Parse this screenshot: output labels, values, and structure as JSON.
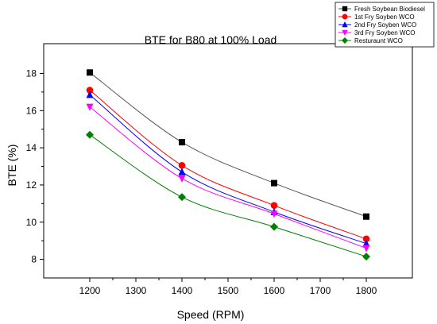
{
  "chart_data": {
    "type": "line",
    "title": "BTE for B80 at 100% Load",
    "xlabel": "Speed (RPM)",
    "ylabel": "BTE (%)",
    "x": [
      1200,
      1400,
      1600,
      1800
    ],
    "xlim": [
      1100,
      1900
    ],
    "ylim": [
      7.0,
      19.6
    ],
    "xticks": [
      1200,
      1300,
      1400,
      1500,
      1600,
      1700,
      1800
    ],
    "yticks": [
      8,
      10,
      12,
      14,
      16,
      18
    ],
    "grid": false,
    "legend_position": "top-right",
    "series": [
      {
        "name": "Fresh Soybean Biodiesel",
        "values": [
          18.05,
          14.3,
          12.1,
          10.3
        ],
        "color": "#000000",
        "line_color": "#555555",
        "marker": "square"
      },
      {
        "name": "1st Fry Soyben WCO",
        "values": [
          17.1,
          13.05,
          10.9,
          9.1
        ],
        "color": "#ff0000",
        "line_color": "#ff0000",
        "marker": "circle"
      },
      {
        "name": "2nd Fry Soyben WCO",
        "values": [
          16.85,
          12.7,
          10.55,
          8.85
        ],
        "color": "#0000ff",
        "line_color": "#0000ff",
        "marker": "triangle-up"
      },
      {
        "name": "3rd Fry Soyben WCO",
        "values": [
          16.2,
          12.35,
          10.45,
          8.6
        ],
        "color": "#ff00ff",
        "line_color": "#ff00ff",
        "marker": "triangle-down"
      },
      {
        "name": "Resturaunt WCO",
        "values": [
          14.7,
          11.35,
          9.75,
          8.15
        ],
        "color": "#008000",
        "line_color": "#008000",
        "marker": "diamond"
      }
    ]
  }
}
